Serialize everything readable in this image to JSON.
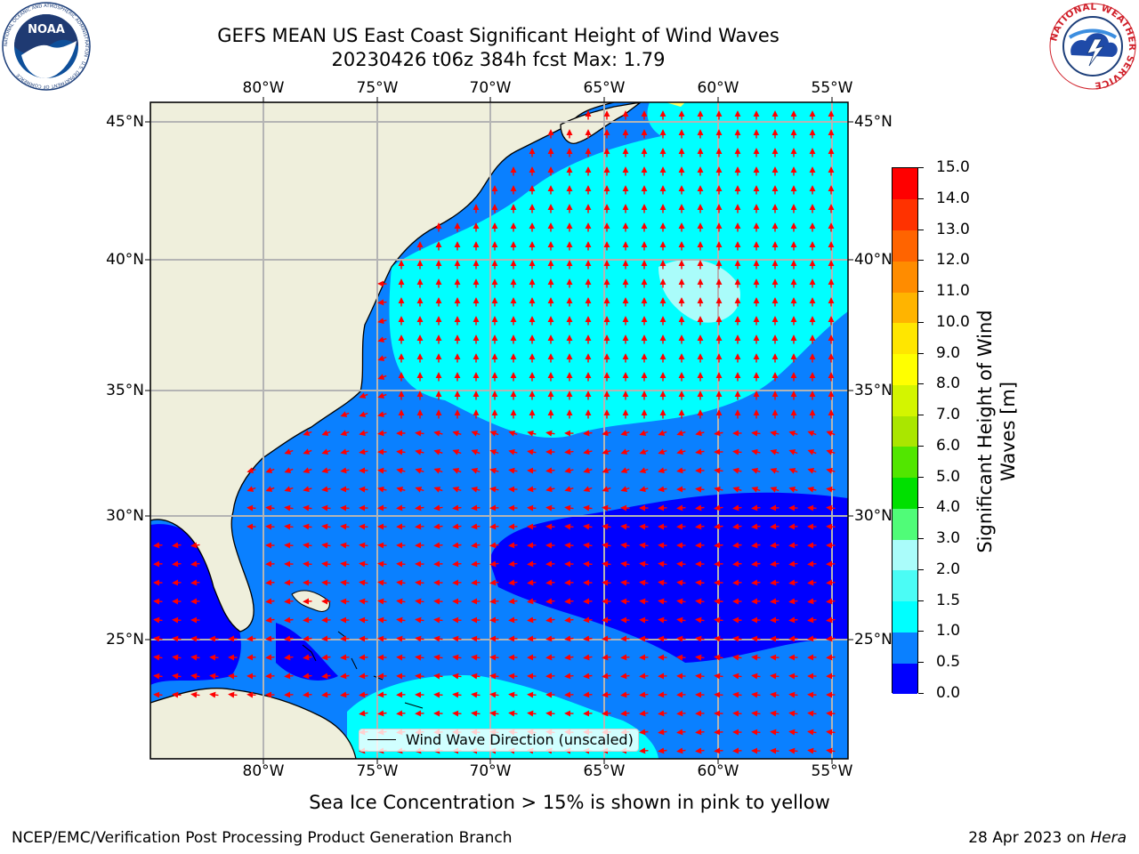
{
  "header": {
    "title_line1": "GEFS MEAN US East Coast Significant Height of Wind Waves",
    "title_line2": "20230426 t06z 384h fcst   Max: 1.79"
  },
  "logos": {
    "noaa": {
      "text": "NOAA",
      "ring_text": "NATIONAL OCEANIC AND ATMOSPHERIC ADMINISTRATION · U.S. DEPARTMENT OF COMMERCE"
    },
    "nws": {
      "ring_text": "NATIONAL WEATHER SERVICE"
    }
  },
  "map": {
    "lon_labels": [
      "80°W",
      "75°W",
      "70°W",
      "65°W",
      "60°W",
      "55°W"
    ],
    "lat_labels": [
      "45°N",
      "40°N",
      "35°N",
      "30°N",
      "25°N"
    ],
    "colors": {
      "land": "#efefdc",
      "grid": "#b4b4b4",
      "arrow": "#ff0000",
      "coast": "#000000"
    },
    "legend": "Wind Wave Direction (unscaled)"
  },
  "colorbar": {
    "title_line1": "Significant Height of Wind",
    "title_line2": "Waves [m]",
    "labels": [
      "0.0",
      "0.5",
      "1.0",
      "1.5",
      "2.0",
      "3.0",
      "4.0",
      "5.0",
      "6.0",
      "7.0",
      "8.0",
      "9.0",
      "10.0",
      "11.0",
      "12.0",
      "13.0",
      "14.0",
      "15.0"
    ],
    "colors": [
      "#0000ff",
      "#0a80ff",
      "#00ffff",
      "#4bfcf5",
      "#aafcfa",
      "#50fc78",
      "#00e000",
      "#52e600",
      "#aae600",
      "#d3f500",
      "#ffff00",
      "#ffe600",
      "#ffb400",
      "#ff8c00",
      "#ff6400",
      "#ff3200",
      "#ff0000"
    ]
  },
  "footer": {
    "ice_note": "Sea Ice Concentration > 15% is shown in pink to yellow",
    "producer": "NCEP/EMC/Verification Post Processing Product Generation Branch",
    "date": "28 Apr 2023 on ",
    "machine": "Hera"
  }
}
